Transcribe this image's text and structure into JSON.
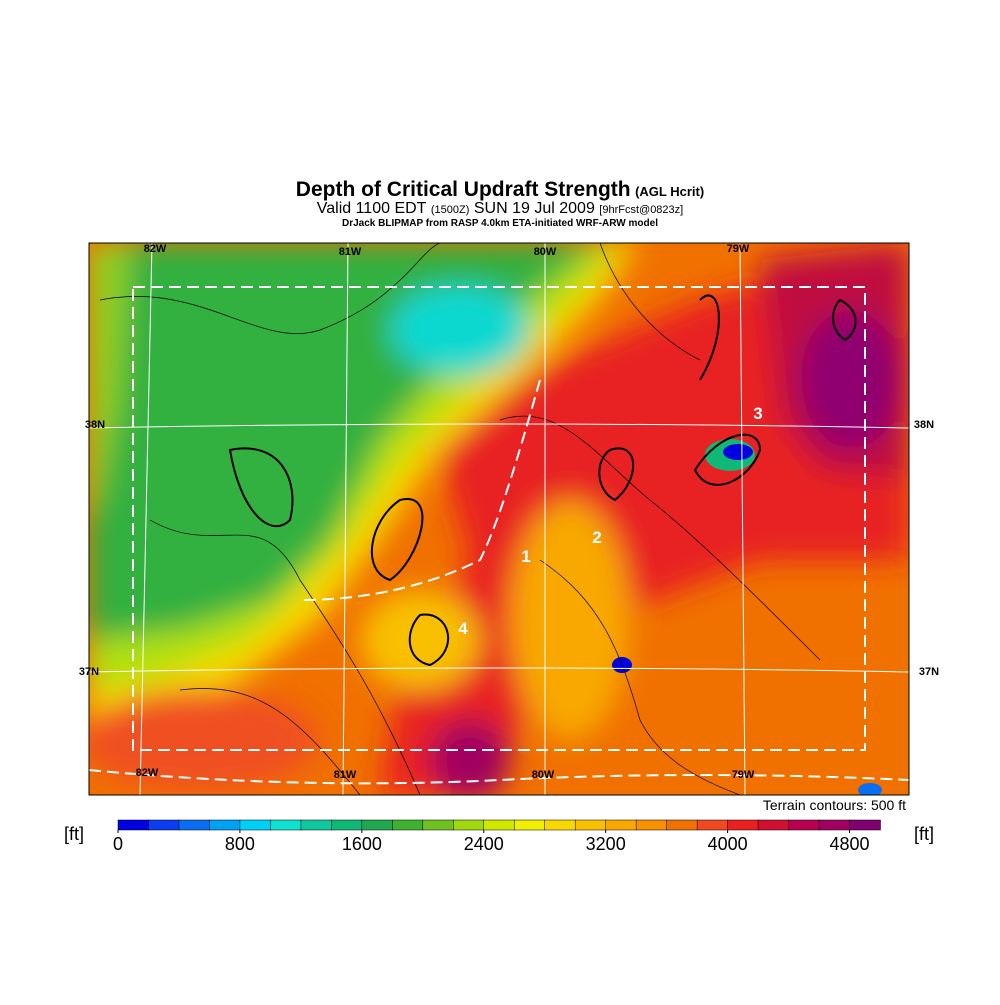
{
  "header": {
    "title": "Depth of Critical Updraft Strength",
    "title_note": "(AGL Hcrit)",
    "valid": "Valid 1100 EDT",
    "utc": "(1500Z)",
    "date": "SUN 19 Jul 2009",
    "forecast": "[9hrFcst@0823z]",
    "model": "DrJack BLIPMAP from RASP 4.0km ETA-initiated WRF-ARW model"
  },
  "map": {
    "lon_labels_top": [
      "82W",
      "81W",
      "80W",
      "79W"
    ],
    "lon_labels_bottom": [
      "82W",
      "81W",
      "80W",
      "79W"
    ],
    "lat_labels_left": [
      "38N",
      "37N"
    ],
    "lat_labels_right": [
      "38N",
      "37N"
    ],
    "markers": [
      "1",
      "2",
      "3",
      "4"
    ],
    "contour_note": "Terrain contours: 500 ft"
  },
  "colorbar": {
    "unit": "[ft]",
    "range": [
      0,
      5000
    ],
    "ticks": [
      0,
      800,
      1600,
      2400,
      3200,
      4000,
      4800
    ],
    "colors": [
      "#0000e0",
      "#0a3cf0",
      "#0a6ef0",
      "#00a0f5",
      "#00d0f5",
      "#10e0d0",
      "#10c8a0",
      "#10b878",
      "#20a850",
      "#40b030",
      "#70c020",
      "#a0d810",
      "#d0e800",
      "#f0f000",
      "#f8d800",
      "#f8c000",
      "#f8a800",
      "#f89000",
      "#f07000",
      "#f04820",
      "#e82020",
      "#d01030",
      "#b80050",
      "#a00060",
      "#800070"
    ]
  }
}
